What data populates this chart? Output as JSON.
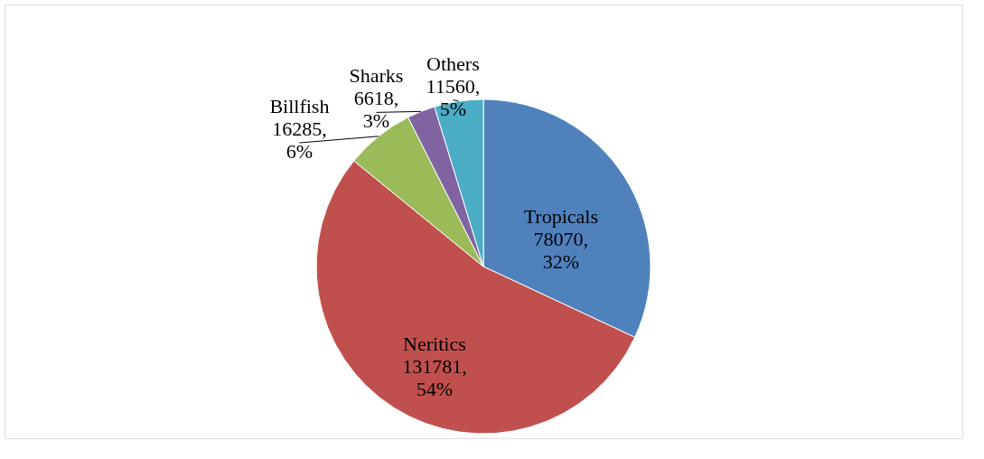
{
  "chart_data": {
    "type": "pie",
    "categories": [
      "Tropicals",
      "Neritics",
      "Billfish",
      "Sharks",
      "Others"
    ],
    "values": [
      78070,
      131781,
      16285,
      6618,
      11560
    ],
    "colors": [
      "#4f81bd",
      "#c0504d",
      "#9bbb59",
      "#8064a2",
      "#4bacc6"
    ],
    "value_labels": [
      "78070,\n32%",
      "131781,\n54%",
      "16285,\n6%",
      "6618,\n3%",
      "11560,\n5%"
    ],
    "legend": false
  }
}
